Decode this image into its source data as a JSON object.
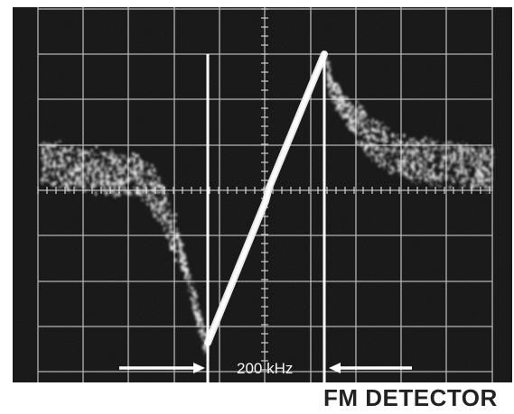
{
  "scope": {
    "bandwidth_label": "200 kHz",
    "caption": "FM DETECTOR",
    "colors": {
      "screen": "#111111",
      "trace": "#e8e8e8",
      "graticule": "#d0d0d0",
      "caption": "#222222"
    }
  }
}
